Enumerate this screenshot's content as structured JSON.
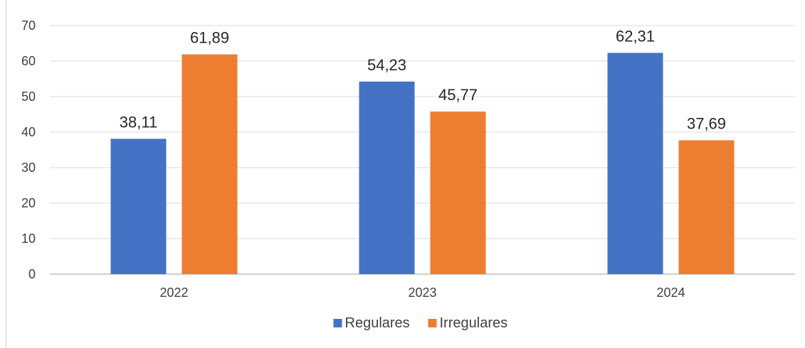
{
  "chart_data": {
    "type": "bar",
    "title": "",
    "xlabel": "",
    "ylabel": "",
    "categories": [
      "2022",
      "2023",
      "2024"
    ],
    "series": [
      {
        "name": "Regulares",
        "color": "#4472c4",
        "values": [
          38.11,
          54.23,
          62.31
        ],
        "labels": [
          "38,11",
          "54,23",
          "62,31"
        ]
      },
      {
        "name": "Irregulares",
        "color": "#ed7d31",
        "values": [
          61.89,
          45.77,
          37.69
        ],
        "labels": [
          "61,89",
          "45,77",
          "37,69"
        ]
      }
    ],
    "ylim": [
      0,
      70
    ],
    "yticks": [
      0,
      10,
      20,
      30,
      40,
      50,
      60,
      70
    ],
    "grid": true,
    "legend_position": "bottom"
  }
}
